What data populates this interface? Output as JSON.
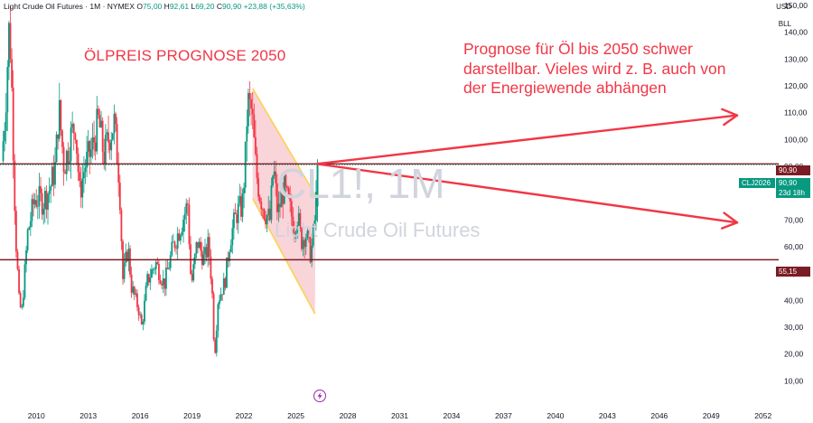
{
  "header": {
    "symbol_text": "Light Crude Oil Futures · 1M · NYMEX",
    "ohlc": [
      {
        "label": "O",
        "value": "75,00"
      },
      {
        "label": "H",
        "value": "92,61"
      },
      {
        "label": "L",
        "value": "69,20"
      },
      {
        "label": "C",
        "value": "90,90"
      }
    ],
    "change": "+23,88 (+35,63%)",
    "currency": "USD",
    "unit": "BLL"
  },
  "annotations": {
    "title": "ÖLPREIS PROGNOSE 2050",
    "note": "Prognose für Öl bis 2050 schwer darstellbar. Vieles wird z. B. auch von der Energiewende abhängen"
  },
  "watermark": {
    "ticker": "CL1!, 1M",
    "name": "Light Crude Oil Futures"
  },
  "price_tags": {
    "upper_line": "90,90",
    "current_symbol": "CLJ2026",
    "current_price": "90,90",
    "countdown": "23d 18h",
    "support_line": "55,15"
  },
  "colors": {
    "up": "#089981",
    "down": "#f23645",
    "annotation": "#f23645",
    "level_line": "#7b1c24",
    "channel_fill": "#f7c6cc",
    "channel_edge": "#fcd34d"
  },
  "icons": [
    "lightning-icon"
  ],
  "chart_data": {
    "type": "candlestick",
    "interval": "1M",
    "x_ticks": [
      "2010",
      "2013",
      "2016",
      "2019",
      "2022",
      "2025",
      "2028",
      "2031",
      "2034",
      "2037",
      "2040",
      "2043",
      "2046",
      "2049",
      "2052"
    ],
    "y_ticks": [
      "10,00",
      "20,00",
      "30,00",
      "40,00",
      "50,00",
      "60,00",
      "70,00",
      "80,00",
      "90,00",
      "100,00",
      "110,00",
      "120,00",
      "130,00",
      "140,00",
      "150,00"
    ],
    "ylim": [
      0,
      152
    ],
    "xlim": [
      2007.9,
      2052.9
    ],
    "price_path": [
      [
        2008.0,
        92
      ],
      [
        2008.2,
        110
      ],
      [
        2008.45,
        145
      ],
      [
        2008.6,
        115
      ],
      [
        2008.8,
        65
      ],
      [
        2009.0,
        40
      ],
      [
        2009.15,
        35
      ],
      [
        2009.5,
        65
      ],
      [
        2009.9,
        78
      ],
      [
        2010.4,
        77
      ],
      [
        2010.8,
        82
      ],
      [
        2011.1,
        90
      ],
      [
        2011.3,
        112
      ],
      [
        2011.6,
        90
      ],
      [
        2012.0,
        101
      ],
      [
        2012.25,
        106
      ],
      [
        2012.5,
        80
      ],
      [
        2012.8,
        90
      ],
      [
        2013.2,
        96
      ],
      [
        2013.6,
        107
      ],
      [
        2013.9,
        94
      ],
      [
        2014.3,
        103
      ],
      [
        2014.5,
        106
      ],
      [
        2014.8,
        85
      ],
      [
        2015.0,
        48
      ],
      [
        2015.3,
        60
      ],
      [
        2015.5,
        45
      ],
      [
        2015.9,
        37
      ],
      [
        2016.1,
        30
      ],
      [
        2016.4,
        47
      ],
      [
        2016.9,
        54
      ],
      [
        2017.4,
        46
      ],
      [
        2017.9,
        60
      ],
      [
        2018.3,
        67
      ],
      [
        2018.75,
        76
      ],
      [
        2018.95,
        45
      ],
      [
        2019.3,
        62
      ],
      [
        2019.7,
        55
      ],
      [
        2019.95,
        61
      ],
      [
        2020.15,
        45
      ],
      [
        2020.3,
        18
      ],
      [
        2020.5,
        40
      ],
      [
        2020.9,
        47
      ],
      [
        2021.2,
        63
      ],
      [
        2021.6,
        73
      ],
      [
        2021.9,
        75
      ],
      [
        2022.1,
        95
      ],
      [
        2022.2,
        114
      ],
      [
        2022.45,
        110
      ],
      [
        2022.7,
        88
      ],
      [
        2022.9,
        80
      ],
      [
        2023.2,
        73
      ],
      [
        2023.5,
        70
      ],
      [
        2023.7,
        90
      ],
      [
        2023.95,
        72
      ],
      [
        2024.3,
        82
      ],
      [
        2024.6,
        75
      ],
      [
        2024.9,
        68
      ],
      [
        2025.1,
        72
      ],
      [
        2025.3,
        62
      ],
      [
        2025.55,
        65
      ],
      [
        2025.75,
        61
      ],
      [
        2025.85,
        57
      ],
      [
        2025.95,
        61
      ],
      [
        2026.05,
        67
      ],
      [
        2026.15,
        75
      ],
      [
        2026.25,
        90.9
      ]
    ],
    "last_candle": {
      "open": 75.0,
      "high": 92.61,
      "low": 69.2,
      "close": 90.9
    },
    "horizontal_levels": [
      90.9,
      55.15
    ],
    "channel": {
      "upper": [
        [
          2022.5,
          119
        ],
        [
          2026.15,
          79
        ]
      ],
      "lower": [
        [
          2022.5,
          78
        ],
        [
          2026.1,
          35
        ]
      ]
    },
    "arrows": [
      {
        "from": [
          2026.2,
          90.9
        ],
        "to": [
          2050.5,
          109
        ]
      },
      {
        "from": [
          2026.2,
          90.9
        ],
        "to": [
          2050.5,
          69
        ]
      }
    ]
  }
}
